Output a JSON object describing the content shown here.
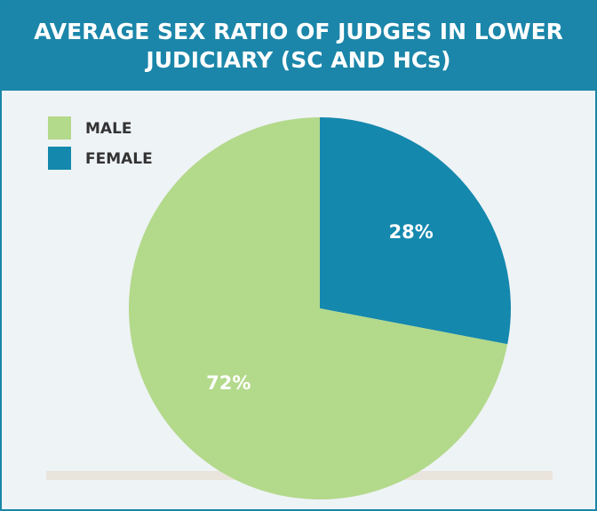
{
  "chart_data": {
    "type": "pie",
    "title": "AVERAGE SEX RATIO OF JUDGES IN LOWER JUDICIARY (SC AND HCs)",
    "categories": [
      "MALE",
      "FEMALE"
    ],
    "values": [
      72,
      28
    ],
    "value_labels": [
      "72%",
      "28%"
    ],
    "colors": [
      "#b3d98b",
      "#1488ad"
    ],
    "legend": "top-left"
  }
}
